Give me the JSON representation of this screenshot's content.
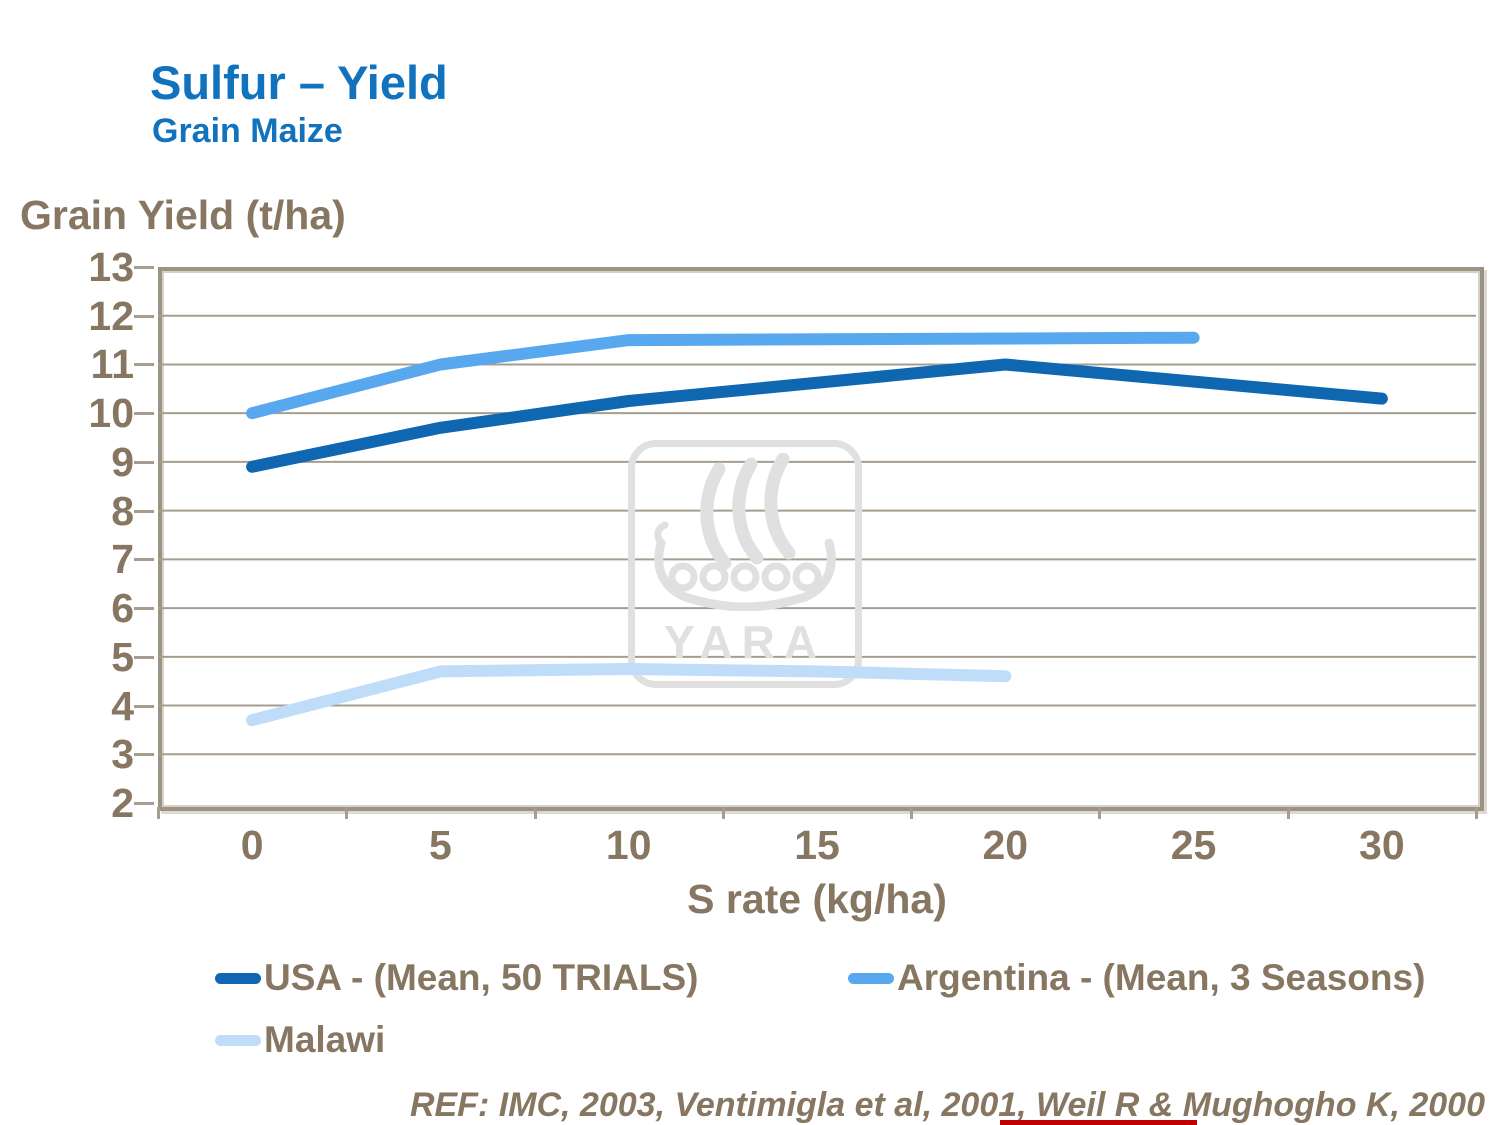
{
  "slide": {
    "title": "Sulfur – Yield",
    "subtitle": "Grain Maize",
    "footer": "REF: IMC, 2003, Ventimigla et al, 2001, Weil R & Mughogho K, 2000"
  },
  "colors": {
    "title_blue": "#1173BE",
    "text_brown": "#877661",
    "grid": "#A79D8F",
    "frame": "#9B9383",
    "usa": "#0E67B0",
    "argentina": "#58A8F0",
    "malawi": "#BFDCF8",
    "watermark": "#E0E0E0",
    "accent_red": "#C00000"
  },
  "chart_data": {
    "type": "line",
    "title": "",
    "ylabel": "Grain Yield (t/ha)",
    "xlabel": "S rate (kg/ha)",
    "ylim": [
      2,
      13
    ],
    "y_tick_step": 1,
    "x_ticks": [
      0,
      5,
      10,
      15,
      20,
      25,
      30
    ],
    "grid": "horizontal",
    "legend_position": "bottom",
    "watermark": "YARA",
    "series": [
      {
        "name": "USA - (Mean, 50 TRIALS)",
        "color_key": "usa",
        "points": [
          {
            "x": 0,
            "y": 8.9
          },
          {
            "x": 5,
            "y": 9.7
          },
          {
            "x": 10,
            "y": 10.25
          },
          {
            "x": 20,
            "y": 11.0
          },
          {
            "x": 30,
            "y": 10.3
          }
        ]
      },
      {
        "name": "Argentina - (Mean, 3 Seasons)",
        "color_key": "argentina",
        "points": [
          {
            "x": 0,
            "y": 10.0
          },
          {
            "x": 5,
            "y": 11.0
          },
          {
            "x": 10,
            "y": 11.5
          },
          {
            "x": 25,
            "y": 11.55
          }
        ]
      },
      {
        "name": "Malawi",
        "color_key": "malawi",
        "points": [
          {
            "x": 0,
            "y": 3.7
          },
          {
            "x": 5,
            "y": 4.7
          },
          {
            "x": 10,
            "y": 4.75
          },
          {
            "x": 15,
            "y": 4.7
          },
          {
            "x": 20,
            "y": 4.6
          }
        ]
      }
    ]
  }
}
